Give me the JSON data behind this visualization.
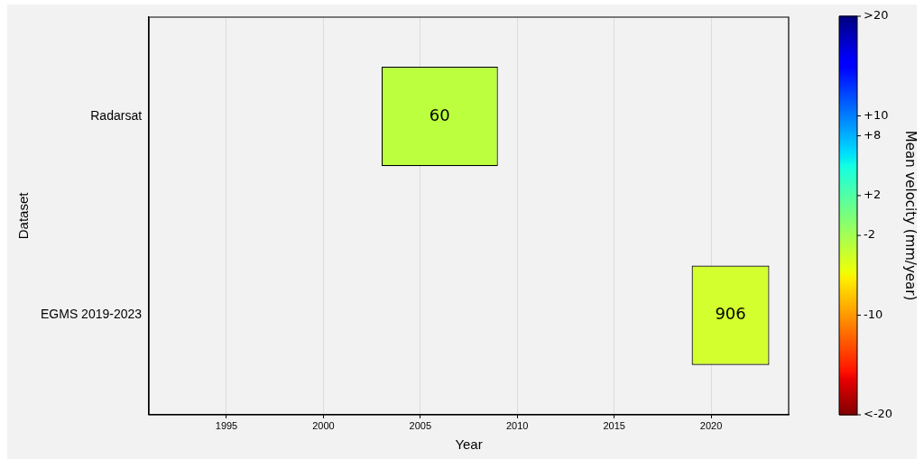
{
  "chart_data": {
    "type": "bar",
    "orientation": "horizontal",
    "xlabel": "Year",
    "ylabel": "Dataset",
    "clabel": "Mean velocity (mm/year)",
    "categories": [
      "Radarsat",
      "EGMS 2019-2023"
    ],
    "base": [
      2003,
      2019
    ],
    "values": [
      6,
      4
    ],
    "colors": [
      "#bbff3f",
      "#d4ff2f"
    ],
    "xlim": [
      1991,
      2024
    ],
    "xticks": [
      1995,
      2000,
      2005,
      2010,
      2015,
      2020
    ],
    "clim": [
      -20,
      20
    ],
    "cticks": [
      {
        "value": -20,
        "label": "<-20"
      },
      {
        "value": -10,
        "label": "-10"
      },
      {
        "value": -2,
        "label": "-2"
      },
      {
        "value": 2,
        "label": "+2"
      },
      {
        "value": 8,
        "label": "+8"
      },
      {
        "value": 10,
        "label": "+10"
      },
      {
        "value": 20,
        "label": ">20"
      }
    ],
    "grid": "x",
    "legend": false,
    "annotations": [
      "60",
      "906"
    ]
  }
}
